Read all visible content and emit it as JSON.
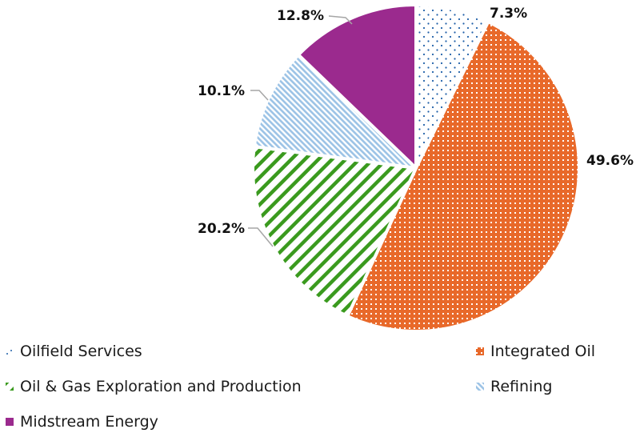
{
  "chart_data": {
    "type": "pie",
    "title": "",
    "start_angle": "12 o'clock",
    "direction": "clockwise",
    "legend_position": "bottom",
    "slices": [
      {
        "name": "Oilfield Services",
        "value": 7.3,
        "label": "7.3%",
        "color": "#1f5fa8",
        "pattern": "dots"
      },
      {
        "name": "Integrated Oil",
        "value": 49.6,
        "label": "49.6%",
        "color": "#e8692a",
        "pattern": "grid"
      },
      {
        "name": "Oil & Gas Exploration and Production",
        "value": 20.2,
        "label": "20.2%",
        "color": "#3a9a1e",
        "pattern": "wide-diagonal"
      },
      {
        "name": "Refining",
        "value": 10.1,
        "label": "10.1%",
        "color": "#9cc3e6",
        "pattern": "narrow-diagonal"
      },
      {
        "name": "Midstream Energy",
        "value": 12.8,
        "label": "12.8%",
        "color": "#9b2a8e",
        "pattern": "solid"
      }
    ]
  },
  "legend": [
    {
      "label": "Oilfield Services"
    },
    {
      "label": "Integrated Oil"
    },
    {
      "label": "Oil & Gas Exploration and Production"
    },
    {
      "label": "Refining"
    },
    {
      "label": "Midstream Energy"
    }
  ]
}
